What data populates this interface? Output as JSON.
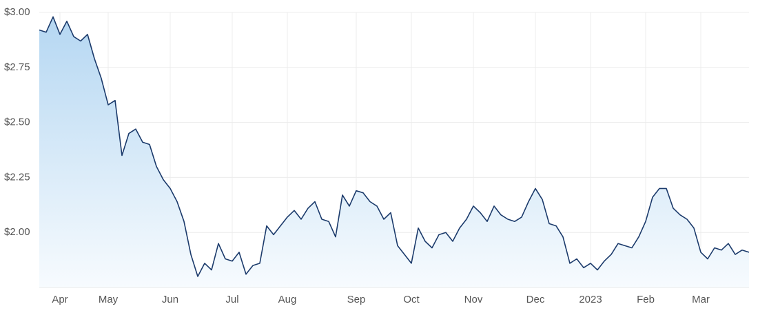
{
  "chart_data": {
    "type": "area",
    "categories": [
      null,
      null,
      null,
      "Apr",
      null,
      null,
      null,
      null,
      null,
      null,
      "May",
      null,
      null,
      null,
      null,
      null,
      null,
      null,
      null,
      "Jun",
      null,
      null,
      null,
      null,
      null,
      null,
      null,
      null,
      "Jul",
      null,
      null,
      null,
      null,
      null,
      null,
      null,
      "Aug",
      null,
      null,
      null,
      null,
      null,
      null,
      null,
      null,
      null,
      "Sep",
      null,
      null,
      null,
      null,
      null,
      null,
      null,
      "Oct",
      null,
      null,
      null,
      null,
      null,
      null,
      null,
      null,
      "Nov",
      null,
      null,
      null,
      null,
      null,
      null,
      null,
      null,
      "Dec",
      null,
      null,
      null,
      null,
      null,
      null,
      null,
      "2023",
      null,
      null,
      null,
      null,
      null,
      null,
      null,
      "Feb",
      null,
      null,
      null,
      null,
      null,
      null,
      null,
      "Mar",
      null,
      null,
      null,
      null,
      null,
      null,
      null
    ],
    "values": [
      2.92,
      2.91,
      2.98,
      2.9,
      2.96,
      2.89,
      2.87,
      2.9,
      2.79,
      2.7,
      2.58,
      2.6,
      2.35,
      2.45,
      2.47,
      2.41,
      2.4,
      2.3,
      2.24,
      2.2,
      2.14,
      2.05,
      1.9,
      1.8,
      1.86,
      1.83,
      1.95,
      1.88,
      1.87,
      1.91,
      1.81,
      1.85,
      1.86,
      2.03,
      1.99,
      2.03,
      2.07,
      2.1,
      2.06,
      2.11,
      2.14,
      2.06,
      2.05,
      1.98,
      2.17,
      2.12,
      2.19,
      2.18,
      2.14,
      2.12,
      2.06,
      2.09,
      1.94,
      1.9,
      1.86,
      2.02,
      1.96,
      1.93,
      1.99,
      2.0,
      1.96,
      2.02,
      2.06,
      2.12,
      2.09,
      2.05,
      2.12,
      2.08,
      2.06,
      2.05,
      2.07,
      2.14,
      2.2,
      2.15,
      2.04,
      2.03,
      1.98,
      1.86,
      1.88,
      1.84,
      1.86,
      1.83,
      1.87,
      1.9,
      1.95,
      1.94,
      1.93,
      1.98,
      2.05,
      2.16,
      2.2,
      2.2,
      2.11,
      2.08,
      2.06,
      2.02,
      1.91,
      1.88,
      1.93,
      1.92,
      1.95,
      1.9,
      1.92,
      1.91
    ],
    "color": "#1b3a6b",
    "ylim": [
      1.75,
      3.0
    ],
    "yticks": [
      {
        "value": 2.0,
        "label": "$2.00"
      },
      {
        "value": 2.25,
        "label": "$2.25"
      },
      {
        "value": 2.5,
        "label": "$2.50"
      },
      {
        "value": 2.75,
        "label": "$2.75"
      },
      {
        "value": 3.0,
        "label": "$3.00"
      }
    ],
    "grid": true
  }
}
